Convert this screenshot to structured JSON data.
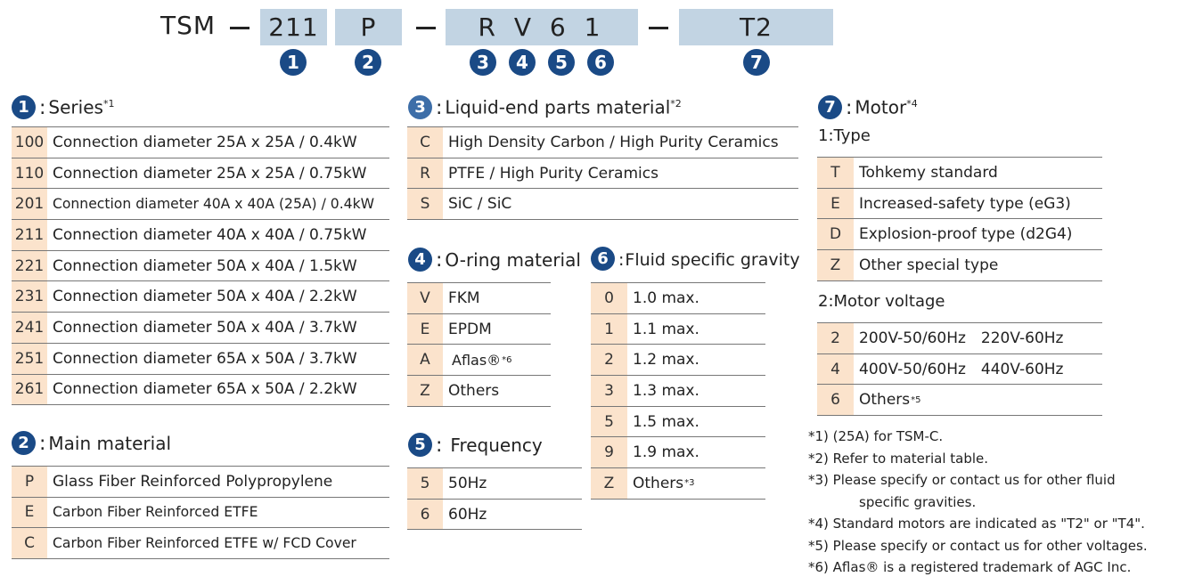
{
  "model_code": {
    "prefix": "TSM",
    "dash": "—",
    "boxes": [
      "211",
      "P",
      "R V 6 1",
      "T2"
    ],
    "markers": [
      "1",
      "2",
      "3",
      "4",
      "5",
      "6",
      "7"
    ]
  },
  "series": {
    "num": "1",
    "title": "Series",
    "note": "*1",
    "rows": [
      {
        "code": "100",
        "desc": "Connection diameter 25A x 25A / 0.4kW"
      },
      {
        "code": "110",
        "desc": "Connection diameter 25A x 25A / 0.75kW"
      },
      {
        "code": "201",
        "desc": "Connection diameter 40A x 40A (25A) / 0.4kW"
      },
      {
        "code": "211",
        "desc": "Connection diameter 40A x 40A / 0.75kW"
      },
      {
        "code": "221",
        "desc": "Connection diameter 50A x 40A / 1.5kW"
      },
      {
        "code": "231",
        "desc": "Connection diameter 50A x 40A / 2.2kW"
      },
      {
        "code": "241",
        "desc": "Connection diameter 50A x 40A / 3.7kW"
      },
      {
        "code": "251",
        "desc": "Connection diameter 65A x 50A / 3.7kW"
      },
      {
        "code": "261",
        "desc": "Connection diameter 65A x 50A / 2.2kW"
      }
    ]
  },
  "main_material": {
    "num": "2",
    "title": "Main material",
    "rows": [
      {
        "code": "P",
        "desc": "Glass Fiber Reinforced Polypropylene"
      },
      {
        "code": "E",
        "desc": "Carbon Fiber Reinforced ETFE"
      },
      {
        "code": "C",
        "desc": "Carbon Fiber Reinforced ETFE w/ FCD Cover"
      }
    ]
  },
  "liquid_end": {
    "num": "3",
    "title": "Liquid-end parts material",
    "note": "*2",
    "rows": [
      {
        "code": "C",
        "desc": "High Density Carbon / High Purity Ceramics"
      },
      {
        "code": "R",
        "desc": "PTFE / High Purity Ceramics"
      },
      {
        "code": "S",
        "desc": "SiC / SiC"
      }
    ]
  },
  "oring": {
    "num": "4",
    "title": "O-ring material",
    "rows": [
      {
        "code": "V",
        "desc": "FKM"
      },
      {
        "code": "E",
        "desc": "EPDM"
      },
      {
        "code": "A",
        "desc": "Aflas®",
        "note": "*6"
      },
      {
        "code": "Z",
        "desc": "Others"
      }
    ]
  },
  "frequency": {
    "num": "5",
    "title": "Frequency",
    "rows": [
      {
        "code": "5",
        "desc": "50Hz"
      },
      {
        "code": "6",
        "desc": "60Hz"
      }
    ]
  },
  "gravity": {
    "num": "6",
    "title": "Fluid specific gravity",
    "rows": [
      {
        "code": "0",
        "desc": "1.0 max."
      },
      {
        "code": "1",
        "desc": "1.1 max."
      },
      {
        "code": "2",
        "desc": "1.2 max."
      },
      {
        "code": "3",
        "desc": "1.3 max."
      },
      {
        "code": "5",
        "desc": "1.5 max."
      },
      {
        "code": "9",
        "desc": "1.9 max."
      },
      {
        "code": "Z",
        "desc": "Others",
        "note": "*3"
      }
    ]
  },
  "motor": {
    "num": "7",
    "title": "Motor",
    "note": "*4",
    "type_label": "1:Type",
    "type_rows": [
      {
        "code": "T",
        "desc": "Tohkemy standard"
      },
      {
        "code": "E",
        "desc": "Increased-safety type (eG3)"
      },
      {
        "code": "D",
        "desc": "Explosion-proof type (d2G4)"
      },
      {
        "code": "Z",
        "desc": "Other special type"
      }
    ],
    "voltage_label": "2:Motor voltage",
    "voltage_rows": [
      {
        "code": "2",
        "desc": "200V-50/60Hz 220V-60Hz"
      },
      {
        "code": "4",
        "desc": "400V-50/60Hz 440V-60Hz"
      },
      {
        "code": "6",
        "desc": "Others",
        "note": "*5"
      }
    ]
  },
  "notes": [
    "*1) (25A) for TSM-C.",
    "*2) Refer to material table.",
    "*3) Please specify or contact us for other fluid",
    "specific gravities.",
    "*4) Standard motors are indicated as \"T2\" or \"T4\".",
    "*5) Please specify or contact us for other voltages.",
    "*6) Aflas® is a registered trademark of AGC Inc."
  ],
  "colors": {
    "marker": "#1a4a86",
    "code_box": "#c2d4e3",
    "code_cell": "#fbe3cc"
  }
}
